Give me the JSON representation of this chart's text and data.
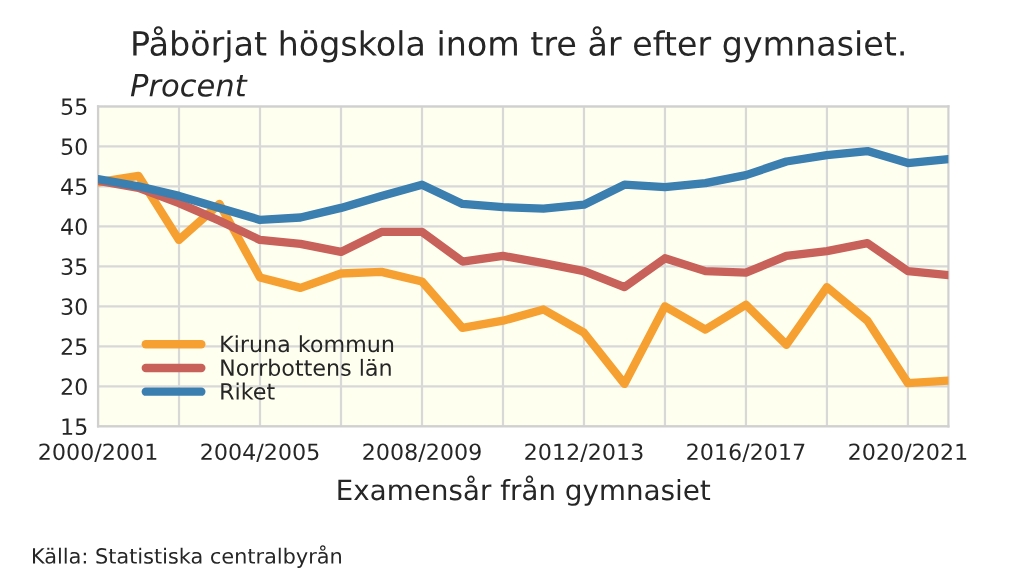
{
  "chart_data": {
    "type": "line",
    "title": "Påbörjat högskola inom tre år efter gymnasiet.",
    "subtitle": "Procent",
    "xlabel": "Examensår från gymnasiet",
    "annotations": [
      "Källa: Statistiska centralbyrån"
    ],
    "categories": [
      "2000/2001",
      null,
      null,
      null,
      "2004/2005",
      null,
      null,
      null,
      "2008/2009",
      null,
      null,
      null,
      "2012/2013",
      null,
      null,
      null,
      "2016/2017",
      null,
      null,
      null,
      "2020/2021",
      null
    ],
    "series": [
      {
        "name": "Kiruna kommun",
        "color": "#f7a032",
        "values": [
          45.5,
          46.3,
          38.3,
          42.8,
          33.6,
          32.3,
          34.1,
          34.3,
          33.1,
          27.3,
          28.2,
          29.6,
          26.7,
          20.3,
          30.0,
          27.1,
          30.2,
          25.2,
          32.4,
          28.2,
          20.4,
          20.7
        ]
      },
      {
        "name": "Norrbottens län",
        "color": "#c8615a",
        "values": [
          45.7,
          44.8,
          42.9,
          40.7,
          38.3,
          37.8,
          36.8,
          39.3,
          39.3,
          35.6,
          36.3,
          35.4,
          34.4,
          32.4,
          36.0,
          34.4,
          34.2,
          36.3,
          36.9,
          37.9,
          34.4,
          33.9
        ]
      },
      {
        "name": "Riket",
        "color": "#3a7fb0",
        "values": [
          45.9,
          45.0,
          43.8,
          42.3,
          40.8,
          41.1,
          42.3,
          43.8,
          45.2,
          42.8,
          42.4,
          42.2,
          42.7,
          45.2,
          44.9,
          45.4,
          46.4,
          48.1,
          48.9,
          49.4,
          47.9,
          48.4
        ]
      }
    ],
    "ylim": [
      15,
      55
    ],
    "yticks": [
      15,
      20,
      25,
      30,
      35,
      40,
      45,
      50,
      55
    ],
    "grid": true,
    "legend": "bottom left",
    "marker": "none",
    "line_style": "solid"
  }
}
